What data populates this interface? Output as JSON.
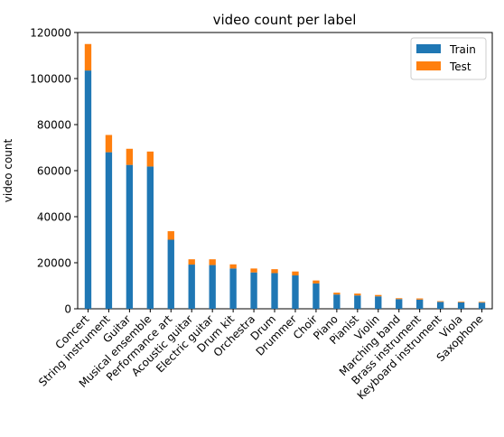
{
  "chart_data": {
    "type": "bar",
    "stacked": true,
    "title": "video count per label",
    "xlabel": "",
    "ylabel": "video count",
    "ylim": [
      0,
      120000
    ],
    "yticks": [
      0,
      20000,
      40000,
      60000,
      80000,
      100000,
      120000
    ],
    "grid": false,
    "legend_position": "top-right",
    "categories": [
      "Concert",
      "String instrument",
      "Guitar",
      "Musical ensemble",
      "Performance art",
      "Acoustic guitar",
      "Electric guitar",
      "Drum kit",
      "Orchestra",
      "Drum",
      "Drummer",
      "Choir",
      "Piano",
      "Pianist",
      "Violin",
      "Marching band",
      "Brass instrument",
      "Keyboard instrument",
      "Viola",
      "Saxophone"
    ],
    "series": [
      {
        "name": "Train",
        "color": "#1f77b4",
        "values": [
          103500,
          68000,
          62500,
          61800,
          30000,
          19200,
          19000,
          17500,
          15800,
          15500,
          14500,
          11000,
          6200,
          5800,
          5400,
          4200,
          4000,
          3000,
          2800,
          2700
        ]
      },
      {
        "name": "Test",
        "color": "#ff7f0e",
        "values": [
          11500,
          7500,
          7000,
          6500,
          3700,
          2300,
          2500,
          1800,
          1700,
          1700,
          1700,
          1300,
          800,
          800,
          600,
          400,
          500,
          300,
          300,
          300
        ]
      }
    ]
  }
}
